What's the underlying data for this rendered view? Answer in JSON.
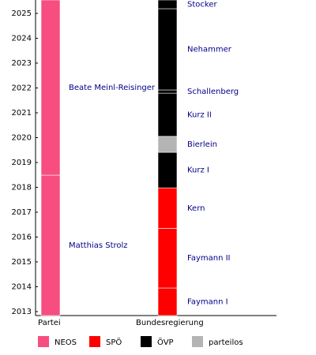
{
  "chart_data": {
    "type": "timeline",
    "categories": [
      "Partei",
      "Bundesregierung"
    ],
    "ylim": [
      2012.84,
      2025.54
    ],
    "yticks": [
      2013,
      2014,
      2015,
      2016,
      2017,
      2018,
      2019,
      2020,
      2021,
      2022,
      2023,
      2024,
      2025
    ],
    "series": [
      {
        "name": "NEOS",
        "color": "#f74d80",
        "segments": [
          {
            "label": "Matthias Strolz",
            "category": 0,
            "start": 2012.84,
            "end": 2018.49
          },
          {
            "label": "Beate Meinl-Reisinger",
            "category": 0,
            "start": 2018.49,
            "end": 2025.54
          }
        ]
      },
      {
        "name": "SPÖ",
        "color": "#ff0000",
        "segments": [
          {
            "label": "Faymann I",
            "category": 1,
            "start": 2012.84,
            "end": 2013.95
          },
          {
            "label": "Faymann II",
            "category": 1,
            "start": 2013.95,
            "end": 2016.35
          },
          {
            "label": "Kern",
            "category": 1,
            "start": 2016.35,
            "end": 2017.98
          }
        ]
      },
      {
        "name": "ÖVP",
        "color": "#000000",
        "segments": [
          {
            "label": "Kurz I",
            "category": 1,
            "start": 2017.98,
            "end": 2019.41
          },
          {
            "label": "Kurz II",
            "category": 1,
            "start": 2020.05,
            "end": 2021.79
          },
          {
            "label": "Schallenberg",
            "category": 1,
            "start": 2021.79,
            "end": 2021.92
          },
          {
            "label": "Nehammer",
            "category": 1,
            "start": 2021.92,
            "end": 2025.19
          },
          {
            "label": "Stocker",
            "category": 1,
            "start": 2025.19,
            "end": 2025.54
          }
        ]
      },
      {
        "name": "parteilos",
        "color": "#b4b4b4",
        "segments": [
          {
            "label": "Bierlein",
            "category": 1,
            "start": 2019.41,
            "end": 2020.05
          }
        ]
      }
    ]
  }
}
